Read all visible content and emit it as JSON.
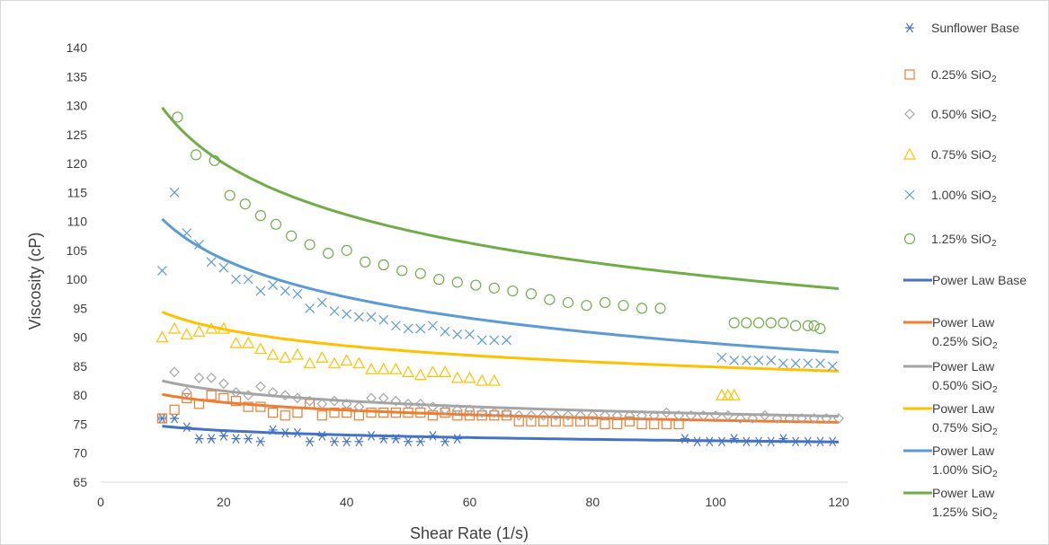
{
  "chart_data": {
    "type": "scatter",
    "xlabel": "Shear Rate (1/s)",
    "ylabel": "Viscosity (cP)",
    "xlim": [
      0,
      130
    ],
    "ylim": [
      65,
      140
    ],
    "xticks": [
      0,
      20,
      40,
      60,
      80,
      100,
      120
    ],
    "yticks": [
      65,
      70,
      75,
      80,
      85,
      90,
      95,
      100,
      105,
      110,
      115,
      120,
      125,
      130,
      135,
      140
    ],
    "grid": false,
    "legend_position": "right",
    "series": [
      {
        "name": "Sunflower Base",
        "main": "Sunflower Base",
        "sub": "",
        "marker": "asterisk",
        "color": "#4472C4",
        "x": [
          10,
          12,
          14,
          16,
          18,
          20,
          22,
          24,
          26,
          28,
          30,
          32,
          34,
          36,
          38,
          40,
          42,
          44,
          46,
          48,
          50,
          52,
          54,
          56,
          58,
          95,
          97,
          99,
          101,
          103,
          105,
          107,
          109,
          111,
          113,
          115,
          117,
          119
        ],
        "y": [
          76,
          76,
          74.5,
          72.5,
          72.5,
          73,
          72.5,
          72.5,
          72,
          74,
          73.5,
          73.5,
          72,
          73,
          72,
          72,
          72,
          73,
          72.5,
          72.5,
          72,
          72,
          73,
          72,
          72.5,
          72.5,
          72,
          72,
          72,
          72.5,
          72,
          72,
          72,
          72.5,
          72,
          72,
          72,
          72
        ]
      },
      {
        "name": "0.25% SiO2",
        "main": "0.25% SiO",
        "sub": "2",
        "marker": "square",
        "color": "#ED7D31",
        "x": [
          10,
          12,
          14,
          16,
          18,
          20,
          22,
          24,
          26,
          28,
          30,
          32,
          34,
          36,
          38,
          40,
          42,
          44,
          46,
          48,
          50,
          52,
          54,
          56,
          58,
          60,
          62,
          64,
          66,
          68,
          70,
          72,
          74,
          76,
          78,
          80,
          82,
          84,
          86,
          88,
          90,
          92,
          94
        ],
        "y": [
          76,
          77.5,
          79.5,
          78.5,
          80,
          79.5,
          79,
          78,
          78,
          77,
          76.5,
          77,
          78.5,
          76.5,
          77,
          77,
          76.5,
          77,
          77,
          77,
          77,
          77,
          76.5,
          77,
          76.5,
          76.5,
          76.5,
          76.5,
          76.5,
          75.5,
          75.5,
          75.5,
          75.5,
          75.5,
          75.5,
          75.5,
          75,
          75,
          75.5,
          75,
          75,
          75,
          75
        ]
      },
      {
        "name": "0.50% SiO2",
        "main": "0.50% SiO",
        "sub": "2",
        "marker": "diamond",
        "color": "#A5A5A5",
        "x": [
          10,
          12,
          14,
          16,
          18,
          20,
          22,
          24,
          26,
          28,
          30,
          32,
          34,
          36,
          38,
          40,
          42,
          44,
          46,
          48,
          50,
          52,
          54,
          56,
          58,
          60,
          62,
          64,
          66,
          68,
          70,
          72,
          74,
          76,
          78,
          80,
          82,
          84,
          86,
          88,
          90,
          92,
          94,
          96,
          98,
          100,
          102,
          104,
          106,
          108,
          110,
          112,
          114,
          116,
          118,
          120
        ],
        "y": [
          76,
          84,
          80.5,
          83,
          83,
          82,
          80.5,
          80,
          81.5,
          80.5,
          80,
          79.5,
          79,
          78.5,
          79,
          78.5,
          78,
          79.5,
          79.5,
          79,
          78.5,
          78.5,
          78,
          77.5,
          77.5,
          77.5,
          77,
          77,
          77,
          76.5,
          76.5,
          76.5,
          76.5,
          76.5,
          76.5,
          76.5,
          76.5,
          76.5,
          76.5,
          76.5,
          76.5,
          77,
          76.5,
          76.5,
          76.5,
          76.5,
          76.5,
          76,
          76,
          76.5,
          76,
          76,
          76,
          76,
          76,
          76
        ]
      },
      {
        "name": "0.75% SiO2",
        "main": "0.75% SiO",
        "sub": "2",
        "marker": "triangle",
        "color": "#FFC000",
        "x": [
          10,
          12,
          14,
          16,
          18,
          20,
          22,
          24,
          26,
          28,
          30,
          32,
          34,
          36,
          38,
          40,
          42,
          44,
          46,
          48,
          50,
          52,
          54,
          56,
          58,
          60,
          62,
          64,
          101,
          102,
          103
        ],
        "y": [
          90,
          91.5,
          90.5,
          91,
          91.5,
          91.5,
          89,
          89,
          88,
          87,
          86.5,
          87,
          85.5,
          86.5,
          85.5,
          86,
          85.5,
          84.5,
          84.5,
          84.5,
          84,
          83.5,
          84,
          84,
          83,
          83,
          82.5,
          82.5,
          80,
          80,
          80
        ]
      },
      {
        "name": "1.00% SiO2",
        "main": "1.00% SiO",
        "sub": "2",
        "marker": "x",
        "color": "#5B9BD5",
        "x": [
          10,
          12,
          14,
          16,
          18,
          20,
          22,
          24,
          26,
          28,
          30,
          32,
          34,
          36,
          38,
          40,
          42,
          44,
          46,
          48,
          50,
          52,
          54,
          56,
          58,
          60,
          62,
          64,
          66,
          101,
          103,
          105,
          107,
          109,
          111,
          113,
          115,
          117,
          119
        ],
        "y": [
          101.5,
          115,
          108,
          106,
          103,
          102,
          100,
          100,
          98,
          99,
          98,
          97.5,
          95,
          96,
          94.5,
          94,
          93.5,
          93.5,
          93,
          92,
          91.5,
          91.5,
          92,
          91,
          90.5,
          90.5,
          89.5,
          89.5,
          89.5,
          86.5,
          86,
          86,
          86,
          86,
          85.5,
          85.5,
          85.5,
          85.5,
          85
        ]
      },
      {
        "name": "1.25% SiO2",
        "main": "1.25% SiO",
        "sub": "2",
        "marker": "circle",
        "color": "#70AD47",
        "x": [
          12.5,
          15.5,
          18.5,
          21,
          23.5,
          26,
          28.5,
          31,
          34,
          37,
          40,
          43,
          46,
          49,
          52,
          55,
          58,
          61,
          64,
          67,
          70,
          73,
          76,
          79,
          82,
          85,
          88,
          91,
          103,
          105,
          107,
          109,
          111,
          113,
          115,
          116,
          117
        ],
        "y": [
          128,
          121.5,
          120.5,
          114.5,
          113,
          111,
          109.5,
          107.5,
          106,
          104.5,
          105,
          103,
          102.5,
          101.5,
          101,
          100,
          99.5,
          99,
          98.5,
          98,
          97.5,
          96.5,
          96,
          95.5,
          96,
          95.5,
          95,
          95,
          92.5,
          92.5,
          92.5,
          92.5,
          92.5,
          92,
          92,
          92,
          91.5
        ]
      },
      {
        "name": "Power Law Base",
        "main": "Power Law Base",
        "sub": "",
        "color": "#4472C4",
        "fit": {
          "k": 77.3,
          "n": 0.985
        }
      },
      {
        "name": "Power Law 0.25% SiO2",
        "main": "Power Law",
        "sub": "0.25% SiO2",
        "color": "#ED7D31",
        "fit": {
          "k": 84.9,
          "n": 0.975
        }
      },
      {
        "name": "Power Law 0.50% SiO2",
        "main": "Power Law",
        "sub": "0.50% SiO2",
        "color": "#A5A5A5",
        "fit": {
          "k": 88.6,
          "n": 0.969
        }
      },
      {
        "name": "Power Law 0.75% SiO2",
        "main": "Power Law",
        "sub": "0.75% SiO2",
        "color": "#FFC000",
        "fit": {
          "k": 104.9,
          "n": 0.954
        }
      },
      {
        "name": "Power Law 1.00% SiO2",
        "main": "Power Law",
        "sub": "1.00% SiO2",
        "color": "#5B9BD5",
        "fit": {
          "k": 137.1,
          "n": 0.906
        }
      },
      {
        "name": "Power Law 1.25% SiO2",
        "main": "Power Law",
        "sub": "1.25% SiO2",
        "color": "#70AD47",
        "fit": {
          "k": 167.4,
          "n": 0.889
        }
      }
    ]
  }
}
